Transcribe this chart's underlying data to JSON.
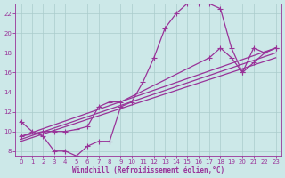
{
  "bg_color": "#cce8e8",
  "grid_color": "#aacccc",
  "line_color": "#993399",
  "xlabel": "Windchill (Refroidissement éolien,°C)",
  "xlim": [
    -0.5,
    23.5
  ],
  "ylim": [
    7.5,
    23.0
  ],
  "xticks": [
    0,
    1,
    2,
    3,
    4,
    5,
    6,
    7,
    8,
    9,
    10,
    11,
    12,
    13,
    14,
    15,
    16,
    17,
    18,
    19,
    20,
    21,
    22,
    23
  ],
  "yticks": [
    8,
    10,
    12,
    14,
    16,
    18,
    20,
    22
  ],
  "line1_x": [
    0,
    1,
    2,
    3,
    4,
    5,
    6,
    7,
    8,
    9,
    10,
    11,
    12,
    13,
    14,
    15,
    16,
    17,
    18,
    19,
    20,
    21,
    22,
    23
  ],
  "line1_y": [
    11,
    10,
    9.5,
    8,
    8,
    7.5,
    8.5,
    9,
    9,
    12.5,
    13,
    15,
    17.5,
    20.5,
    22,
    23,
    23,
    23,
    22.5,
    18.5,
    16,
    18.5,
    18,
    18.5
  ],
  "line2_x": [
    0,
    2,
    3,
    4,
    5,
    6,
    7,
    8,
    9,
    17,
    18,
    19,
    20,
    21,
    22,
    23
  ],
  "line2_y": [
    9.5,
    10,
    10,
    10,
    10.2,
    10.5,
    12.5,
    13,
    13,
    17.5,
    18.5,
    17.5,
    16,
    17,
    18,
    18.5
  ],
  "line3_x": [
    0,
    23
  ],
  "line3_y": [
    9.5,
    18.5
  ],
  "line4_x": [
    0,
    23
  ],
  "line4_y": [
    9.2,
    18.0
  ],
  "line5_x": [
    0,
    23
  ],
  "line5_y": [
    9.0,
    17.5
  ]
}
